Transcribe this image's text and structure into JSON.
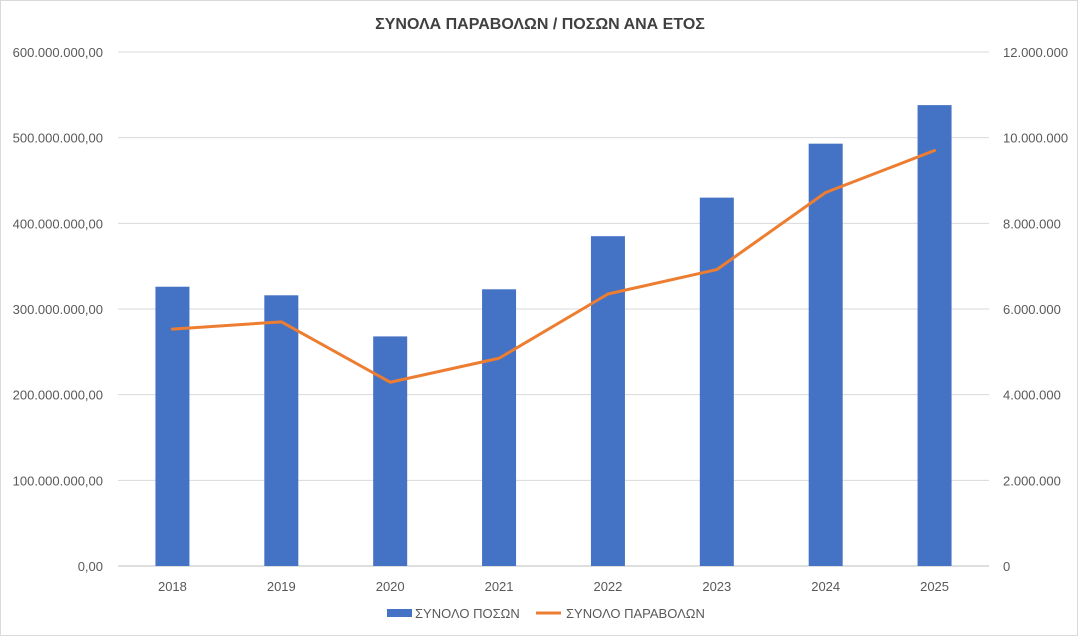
{
  "chart_data": {
    "type": "bar",
    "title": "ΣΥΝΟΛΑ ΠΑΡΑΒΟΛΩΝ / ΠΟΣΩΝ ΑΝΑ ΕΤΟΣ",
    "categories": [
      "2018",
      "2019",
      "2020",
      "2021",
      "2022",
      "2023",
      "2024",
      "2025"
    ],
    "series": [
      {
        "name": "ΣΥΝΟΛΟ ΠΟΣΩΝ",
        "type": "bar",
        "axis": "left",
        "color": "#4472C4",
        "values": [
          326000000,
          316000000,
          268000000,
          323000000,
          385000000,
          430000000,
          493000000,
          538000000
        ]
      },
      {
        "name": "ΣΥΝΟΛΟ ΠΑΡΑΒΟΛΩΝ",
        "type": "line",
        "axis": "right",
        "color": "#ED7D31",
        "values": [
          5530000,
          5700000,
          4290000,
          4850000,
          6350000,
          6920000,
          8720000,
          9700000
        ]
      }
    ],
    "left_axis": {
      "ylim": [
        0,
        600000000
      ],
      "ticks": [
        "0,00",
        "100.000.000,00",
        "200.000.000,00",
        "300.000.000,00",
        "400.000.000,00",
        "500.000.000,00",
        "600.000.000,00"
      ]
    },
    "right_axis": {
      "ylim": [
        0,
        12000000
      ],
      "ticks": [
        "0",
        "2.000.000",
        "4.000.000",
        "6.000.000",
        "8.000.000",
        "10.000.000",
        "12.000.000"
      ]
    },
    "grid": true,
    "legend_position": "bottom"
  }
}
